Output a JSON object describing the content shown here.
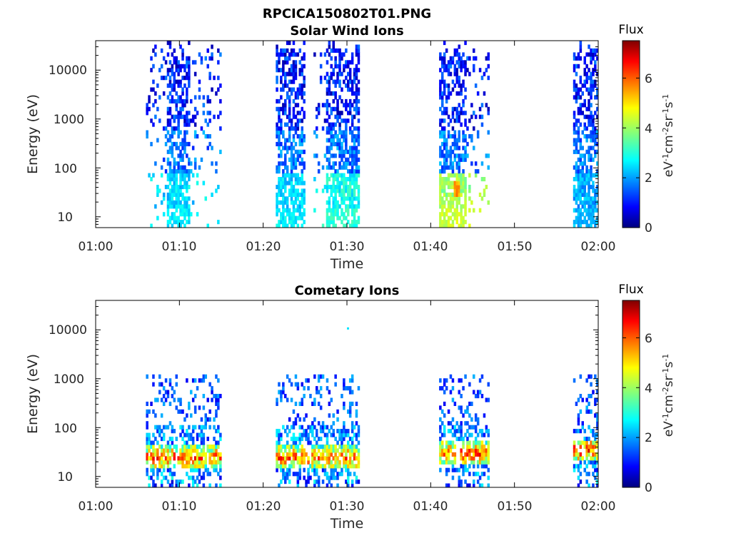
{
  "figure": {
    "filename": "RPCICA150802T01.PNG"
  },
  "chart_data": [
    {
      "type": "heatmap",
      "title": "Solar Wind Ions",
      "xlabel": "Time",
      "ylabel": "Energy (eV)",
      "xticks": [
        "01:00",
        "01:10",
        "01:20",
        "01:30",
        "01:40",
        "01:50",
        "02:00"
      ],
      "xlim_minutes": [
        0,
        60
      ],
      "yscale": "log",
      "yticks": [
        10,
        100,
        1000,
        10000
      ],
      "ylim": [
        6,
        40000
      ],
      "colorbar": {
        "label": "Flux",
        "unit": "eV-1cm-2sr-1s-1",
        "range": [
          0,
          7.5
        ],
        "ticks": [
          0,
          2,
          4,
          6
        ],
        "colormap": "jet"
      },
      "bursts": [
        {
          "start_min": 6,
          "end_min": 15,
          "core_start_min": 8.5,
          "core_end_min": 11,
          "lowE_flux": 3.0
        },
        {
          "start_min": 21.5,
          "end_min": 25,
          "core_start_min": 21.5,
          "core_end_min": 25,
          "lowE_flux": 3.0
        },
        {
          "start_min": 26,
          "end_min": 31.5,
          "core_start_min": 27.5,
          "core_end_min": 31.5,
          "lowE_flux": 3.5
        },
        {
          "start_min": 41,
          "end_min": 47,
          "core_start_min": 41,
          "core_end_min": 44,
          "lowE_flux": 5.0
        },
        {
          "start_min": 57,
          "end_min": 60,
          "core_start_min": 57,
          "core_end_min": 60,
          "lowE_flux": 2.5
        }
      ]
    },
    {
      "type": "heatmap",
      "title": "Cometary Ions",
      "xlabel": "Time",
      "ylabel": "Energy (eV)",
      "xticks": [
        "01:00",
        "01:10",
        "01:20",
        "01:30",
        "01:40",
        "01:50",
        "02:00"
      ],
      "xlim_minutes": [
        0,
        60
      ],
      "yscale": "log",
      "yticks": [
        10,
        100,
        1000,
        10000
      ],
      "ylim": [
        6,
        40000
      ],
      "colorbar": {
        "label": "Flux",
        "unit": "eV-1cm-2sr-1s-1",
        "range": [
          0,
          7.5
        ],
        "ticks": [
          0,
          2,
          4,
          6
        ],
        "colormap": "jet"
      },
      "bursts": [
        {
          "start_min": 6,
          "end_min": 15,
          "peak_energy_eV": 25,
          "peak_flux": 7.0
        },
        {
          "start_min": 21.5,
          "end_min": 31.5,
          "peak_energy_eV": 25,
          "peak_flux": 7.0
        },
        {
          "start_min": 41,
          "end_min": 47,
          "peak_energy_eV": 30,
          "peak_flux": 7.2
        },
        {
          "start_min": 57,
          "end_min": 60,
          "peak_energy_eV": 35,
          "peak_flux": 7.3
        }
      ]
    }
  ]
}
